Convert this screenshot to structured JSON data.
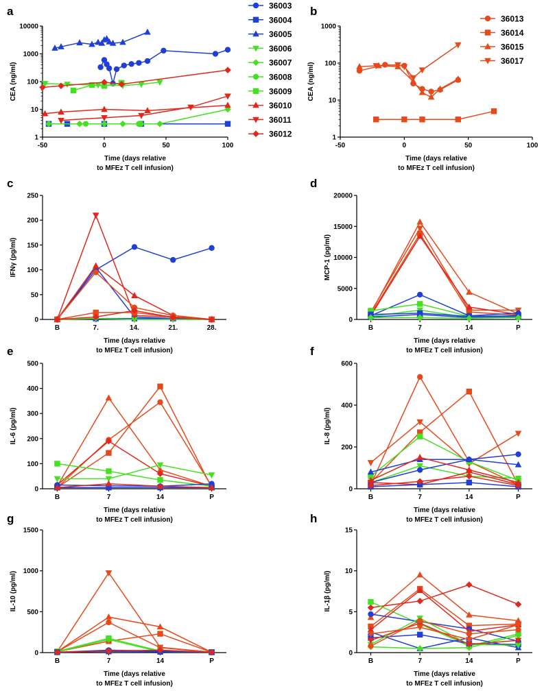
{
  "colors": {
    "36003": "#1f3fd6",
    "36004": "#1f3fd6",
    "36005": "#1f3fd6",
    "36006": "#44e022",
    "36007": "#44e022",
    "36008": "#44e022",
    "36009": "#44e022",
    "36010": "#e0281c",
    "36011": "#e0281c",
    "36012": "#e0281c",
    "36013": "#e64a1a",
    "36014": "#e64a1a",
    "36015": "#e64a1a",
    "36017": "#e64a1a"
  },
  "markers": {
    "36003": "circle",
    "36004": "square",
    "36005": "triangle-up",
    "36006": "triangle-down",
    "36007": "diamond",
    "36008": "circle",
    "36009": "square",
    "36010": "triangle-up",
    "36011": "triangle-down",
    "36012": "diamond",
    "36013": "circle",
    "36014": "square",
    "36015": "triangle-up",
    "36017": "triangle-down"
  },
  "chart_data": [
    {
      "panel": "a",
      "type": "line",
      "scale": "log",
      "xlabel": [
        "Time (days relative",
        "to MFEz T cell infusion)"
      ],
      "ylabel": "CEA (ng/ml)",
      "xlim": [
        -50,
        100
      ],
      "ylim": [
        1,
        10000
      ],
      "xticks": [
        "-50",
        "0",
        "50",
        "100"
      ],
      "yticks": [
        "1",
        "10",
        "100",
        "1000",
        "10000"
      ],
      "legend": [
        "36003",
        "36004",
        "36005",
        "36006",
        "36007",
        "36008",
        "36009",
        "36010",
        "36011",
        "36012"
      ],
      "series": [
        {
          "name": "36003",
          "x": [
            -3,
            0,
            2,
            4,
            7,
            10,
            16,
            22,
            28,
            35,
            48,
            90,
            100
          ],
          "y": [
            330,
            600,
            420,
            300,
            85,
            280,
            380,
            430,
            470,
            550,
            1300,
            1000,
            1400
          ]
        },
        {
          "name": "36004",
          "x": [
            -45,
            -30,
            0,
            30,
            100
          ],
          "y": [
            3,
            3,
            3,
            3,
            3
          ]
        },
        {
          "name": "36005",
          "x": [
            -40,
            -35,
            -20,
            -10,
            -5,
            -2,
            0,
            2,
            4,
            7,
            15,
            35
          ],
          "y": [
            1600,
            1800,
            2500,
            2200,
            2600,
            2400,
            3200,
            3500,
            2700,
            2400,
            2600,
            6000
          ]
        },
        {
          "name": "36006",
          "x": [
            -48,
            -30,
            -5,
            15,
            30,
            45
          ],
          "y": [
            85,
            80,
            75,
            72,
            80,
            95
          ]
        },
        {
          "name": "36007",
          "x": [
            -45,
            -20,
            0,
            15,
            30,
            45,
            100
          ],
          "y": [
            3,
            3,
            3,
            3,
            3,
            3,
            10
          ]
        },
        {
          "name": "36008",
          "x": [
            -15,
            28
          ],
          "y": [
            3,
            3
          ]
        },
        {
          "name": "36009",
          "x": [
            -25,
            -10,
            0,
            14
          ],
          "y": [
            48,
            75,
            70,
            90
          ]
        },
        {
          "name": "36010",
          "x": [
            -48,
            -35,
            0,
            35,
            100
          ],
          "y": [
            7,
            8,
            10,
            9,
            14
          ]
        },
        {
          "name": "36011",
          "x": [
            -35,
            0,
            30,
            70,
            100
          ],
          "y": [
            4,
            5,
            6,
            12,
            30
          ]
        },
        {
          "name": "36012",
          "x": [
            -50,
            -35,
            0,
            14,
            100
          ],
          "y": [
            62,
            70,
            95,
            80,
            260
          ]
        }
      ]
    },
    {
      "panel": "b",
      "type": "line",
      "scale": "log",
      "xlabel": [
        "Time (days relative",
        "to MFEz T cell infusion)"
      ],
      "ylabel": "CEA (ng/ml)",
      "xlim": [
        -50,
        100
      ],
      "ylim": [
        1,
        1000
      ],
      "xticks": [
        "-50",
        "0",
        "50",
        "100"
      ],
      "yticks": [
        "1",
        "10",
        "100",
        "1000"
      ],
      "legend": [
        "36013",
        "36014",
        "36015",
        "36017"
      ],
      "series": [
        {
          "name": "36013",
          "x": [
            -35,
            -15,
            0,
            7,
            14,
            21,
            28,
            42
          ],
          "y": [
            62,
            90,
            85,
            28,
            20,
            17,
            19,
            35
          ]
        },
        {
          "name": "36014",
          "x": [
            -22,
            0,
            14,
            42,
            70
          ],
          "y": [
            3,
            3,
            3,
            3,
            5
          ]
        },
        {
          "name": "36015",
          "x": [
            -35,
            -20,
            -5,
            7,
            14,
            21,
            28,
            42
          ],
          "y": [
            80,
            85,
            80,
            32,
            16,
            12,
            20,
            37
          ]
        },
        {
          "name": "36017",
          "x": [
            -22,
            -5,
            0,
            7,
            14,
            42
          ],
          "y": [
            85,
            90,
            80,
            40,
            65,
            310
          ]
        }
      ]
    },
    {
      "panel": "c",
      "type": "line",
      "xlabel": [
        "Time (days relative",
        "to MFEz T cell infusion)"
      ],
      "ylabel": "IFNγ (pg/ml)",
      "categories": [
        "B",
        "7.",
        "14.",
        "21.",
        "28."
      ],
      "ylim": [
        0,
        250
      ],
      "yticks": [
        "0",
        "50",
        "100",
        "150",
        "200",
        "250"
      ],
      "series": [
        {
          "name": "36003",
          "values": [
            0,
            100,
            146,
            120,
            144
          ]
        },
        {
          "name": "36004",
          "values": [
            0,
            2,
            2,
            2,
            0
          ]
        },
        {
          "name": "36005",
          "values": [
            0,
            105,
            5,
            2,
            0
          ]
        },
        {
          "name": "36006",
          "values": [
            0,
            2,
            0,
            0,
            0
          ]
        },
        {
          "name": "36011",
          "values": [
            0,
            210,
            8,
            5,
            0
          ]
        },
        {
          "name": "36010",
          "values": [
            0,
            108,
            48,
            8,
            0
          ]
        },
        {
          "name": "36013",
          "values": [
            0,
            95,
            24,
            8,
            0
          ]
        },
        {
          "name": "36014",
          "values": [
            0,
            14,
            14,
            5,
            0
          ]
        },
        {
          "name": "36012",
          "values": [
            0,
            5,
            18,
            4,
            0
          ]
        }
      ]
    },
    {
      "panel": "d",
      "type": "line",
      "xlabel": [
        "Time (days relative",
        "to MFEz T cell infusion)"
      ],
      "ylabel": "MCP-1 (pg/ml)",
      "categories": [
        "B",
        "7",
        "14",
        "P"
      ],
      "ylim": [
        0,
        20000
      ],
      "yticks": [
        "0",
        "5000",
        "10000",
        "15000",
        "20000"
      ],
      "series": [
        {
          "name": "36015",
          "values": [
            1000,
            15700,
            4400,
            900
          ]
        },
        {
          "name": "36017",
          "values": [
            1200,
            14700,
            1500,
            1500
          ]
        },
        {
          "name": "36014",
          "values": [
            800,
            13800,
            1200,
            700
          ]
        },
        {
          "name": "36010",
          "values": [
            600,
            13400,
            2000,
            800
          ]
        },
        {
          "name": "36003",
          "values": [
            600,
            4000,
            600,
            1000
          ]
        },
        {
          "name": "36009",
          "values": [
            1400,
            2500,
            500,
            400
          ]
        },
        {
          "name": "36006",
          "values": [
            500,
            1500,
            300,
            400
          ]
        },
        {
          "name": "36004",
          "values": [
            800,
            1000,
            500,
            600
          ]
        },
        {
          "name": "36005",
          "values": [
            400,
            800,
            300,
            400
          ]
        },
        {
          "name": "36007",
          "values": [
            300,
            300,
            200,
            300
          ]
        }
      ]
    },
    {
      "panel": "e",
      "type": "line",
      "xlabel": [
        "Time (days relative",
        "to MFEz T cell infusion)"
      ],
      "ylabel": "IL-6 (pg/ml)",
      "categories": [
        "B",
        "7",
        "14",
        "P"
      ],
      "ylim": [
        0,
        500
      ],
      "yticks": [
        "0",
        "100",
        "200",
        "300",
        "400",
        "500"
      ],
      "series": [
        {
          "name": "36015",
          "values": [
            10,
            362,
            75,
            10
          ]
        },
        {
          "name": "36014",
          "values": [
            5,
            143,
            408,
            5
          ]
        },
        {
          "name": "36013",
          "values": [
            5,
            195,
            345,
            10
          ]
        },
        {
          "name": "36012",
          "values": [
            15,
            190,
            60,
            10
          ]
        },
        {
          "name": "36009",
          "values": [
            100,
            70,
            35,
            10
          ]
        },
        {
          "name": "36006",
          "values": [
            40,
            40,
            95,
            55
          ]
        },
        {
          "name": "36003",
          "values": [
            15,
            12,
            10,
            20
          ]
        },
        {
          "name": "36004",
          "values": [
            5,
            5,
            5,
            5
          ]
        },
        {
          "name": "36010",
          "values": [
            5,
            20,
            10,
            5
          ]
        }
      ]
    },
    {
      "panel": "f",
      "type": "line",
      "xlabel": [
        "Time (days relative",
        "to MFEz T cell infusion)"
      ],
      "ylabel": "IL-8 (pg/ml)",
      "categories": [
        "B",
        "7",
        "14",
        "P"
      ],
      "ylim": [
        0,
        600
      ],
      "yticks": [
        "0",
        "200",
        "400",
        "600"
      ],
      "series": [
        {
          "name": "36013",
          "values": [
            20,
            535,
            130,
            20
          ]
        },
        {
          "name": "36014",
          "values": [
            30,
            270,
            465,
            20
          ]
        },
        {
          "name": "36017",
          "values": [
            125,
            320,
            120,
            265
          ]
        },
        {
          "name": "36009",
          "values": [
            60,
            250,
            130,
            40
          ]
        },
        {
          "name": "36006",
          "values": [
            30,
            110,
            60,
            50
          ]
        },
        {
          "name": "36003",
          "values": [
            30,
            90,
            140,
            165
          ]
        },
        {
          "name": "36005",
          "values": [
            80,
            140,
            140,
            115
          ]
        },
        {
          "name": "36010",
          "values": [
            40,
            150,
            90,
            30
          ]
        },
        {
          "name": "36011",
          "values": [
            30,
            20,
            80,
            20
          ]
        },
        {
          "name": "36004",
          "values": [
            10,
            20,
            30,
            10
          ]
        },
        {
          "name": "36012",
          "values": [
            15,
            35,
            60,
            15
          ]
        }
      ]
    },
    {
      "panel": "g",
      "type": "line",
      "xlabel": [
        "Time (days relative",
        "to MFEz T cell infusion)"
      ],
      "ylabel": "IL-10 (pg/ml)",
      "categories": [
        "B",
        "7",
        "14",
        "P"
      ],
      "ylim": [
        0,
        1500
      ],
      "yticks": [
        "0",
        "500",
        "1000",
        "1500"
      ],
      "series": [
        {
          "name": "36017",
          "values": [
            10,
            975,
            65,
            5
          ]
        },
        {
          "name": "36015",
          "values": [
            10,
            435,
            315,
            5
          ]
        },
        {
          "name": "36013",
          "values": [
            10,
            370,
            60,
            5
          ]
        },
        {
          "name": "36014",
          "values": [
            10,
            140,
            230,
            5
          ]
        },
        {
          "name": "36009",
          "values": [
            15,
            175,
            20,
            5
          ]
        },
        {
          "name": "36006",
          "values": [
            10,
            160,
            10,
            5
          ]
        },
        {
          "name": "36003",
          "values": [
            5,
            30,
            20,
            5
          ]
        },
        {
          "name": "36004",
          "values": [
            5,
            15,
            10,
            5
          ]
        },
        {
          "name": "36012",
          "values": [
            5,
            20,
            30,
            5
          ]
        }
      ]
    },
    {
      "panel": "h",
      "type": "line",
      "xlabel": [
        "Time (days relative",
        "to MFEz T cell infusion)"
      ],
      "ylabel": "IL-1β (pg/ml)",
      "categories": [
        "B",
        "7",
        "14",
        "P"
      ],
      "ylim": [
        0,
        15
      ],
      "yticks": [
        "0",
        "5",
        "10",
        "15"
      ],
      "series": [
        {
          "name": "36015",
          "values": [
            4.3,
            9.5,
            4.6,
            3.9
          ]
        },
        {
          "name": "36012",
          "values": [
            5.5,
            6.3,
            8.3,
            5.9
          ]
        },
        {
          "name": "36014",
          "values": [
            3.2,
            7.8,
            3.3,
            3.5
          ]
        },
        {
          "name": "36009",
          "values": [
            6.2,
            3.5,
            0.8,
            2.3
          ]
        },
        {
          "name": "36003",
          "values": [
            4.7,
            3.8,
            2.9,
            1.4
          ]
        },
        {
          "name": "36004",
          "values": [
            1.8,
            2.2,
            1.1,
            1.0
          ]
        },
        {
          "name": "36005",
          "values": [
            2.5,
            0.5,
            1.8,
            0.6
          ]
        },
        {
          "name": "36006",
          "values": [
            1.0,
            4.2,
            1.0,
            0.9
          ]
        },
        {
          "name": "36007",
          "values": [
            0.7,
            0.5,
            0.6,
            2.1
          ]
        },
        {
          "name": "36010",
          "values": [
            2.8,
            7.6,
            2.6,
            3.4
          ]
        },
        {
          "name": "36011",
          "values": [
            1.5,
            3.6,
            1.0,
            1.5
          ]
        },
        {
          "name": "36013",
          "values": [
            0.8,
            3.9,
            2.3,
            2.8
          ]
        },
        {
          "name": "36017",
          "values": [
            2.3,
            3.1,
            1.6,
            3.4
          ]
        }
      ]
    }
  ]
}
